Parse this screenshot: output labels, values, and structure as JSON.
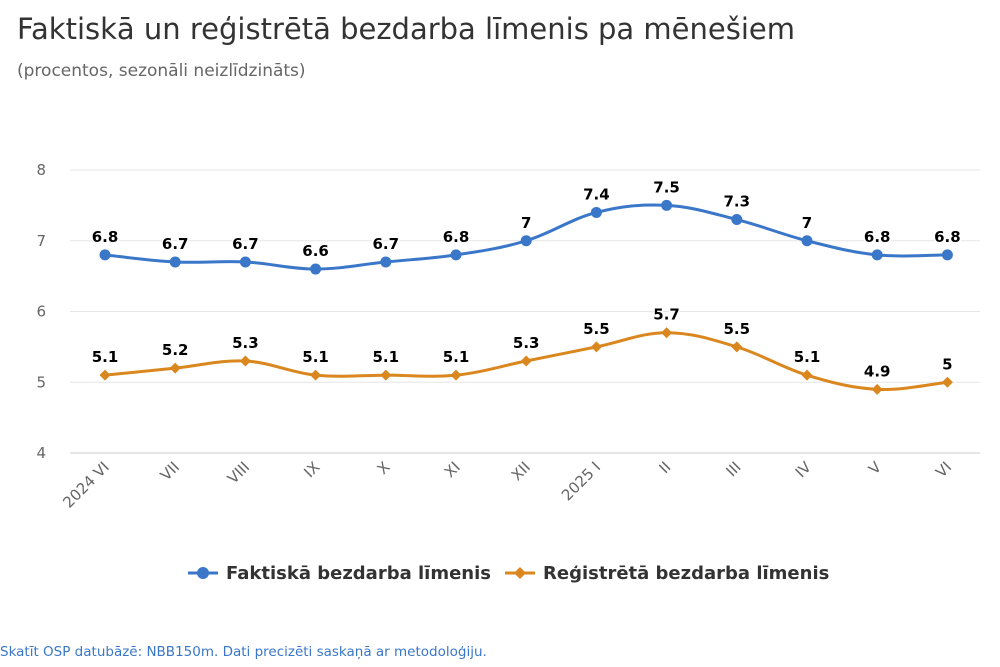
{
  "title": "Faktiskā un reģistrētā bezdarba līmenis pa mēnešiem",
  "subtitle": "(procentos, sezonāli neizlīdzināts)",
  "footer": "Skatīt OSP datubāzē: NBB150m. Dati precizēti saskaņā ar metodoloģiju.",
  "chart_data": {
    "type": "line",
    "categories": [
      "2024 VI",
      "VII",
      "VIII",
      "IX",
      "X",
      "XI",
      "XII",
      "2025 I",
      "II",
      "III",
      "IV",
      "V",
      "VI"
    ],
    "ylim": [
      4,
      8
    ],
    "yticks": [
      "4",
      "5",
      "6",
      "7",
      "8"
    ],
    "grid": true,
    "legend_position": "bottom",
    "series": [
      {
        "name": "Faktiskā bezdarba līmenis",
        "color": "#3a77c8",
        "marker": "circle",
        "values": [
          6.8,
          6.7,
          6.7,
          6.6,
          6.7,
          6.8,
          7,
          7.4,
          7.5,
          7.3,
          7,
          6.8,
          6.8
        ]
      },
      {
        "name": "Reģistrētā bezdarba līmenis",
        "color": "#d9871e",
        "marker": "diamond",
        "values": [
          5.1,
          5.2,
          5.3,
          5.1,
          5.1,
          5.1,
          5.3,
          5.5,
          5.7,
          5.5,
          5.1,
          4.9,
          5
        ]
      }
    ]
  }
}
